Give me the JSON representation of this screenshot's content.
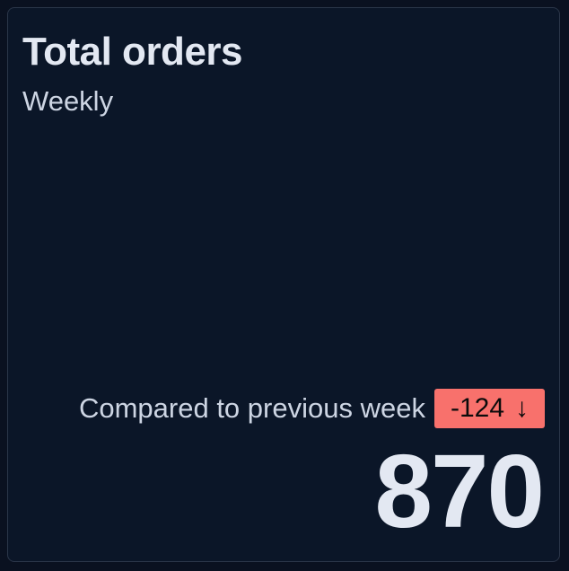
{
  "card": {
    "title": "Total orders",
    "subtitle": "Weekly",
    "comparison_label": "Compared to previous week",
    "delta": "-124",
    "delta_icon": "arrow-down-icon",
    "delta_arrow": "↓",
    "delta_color": "#f8716c",
    "value": "870"
  }
}
